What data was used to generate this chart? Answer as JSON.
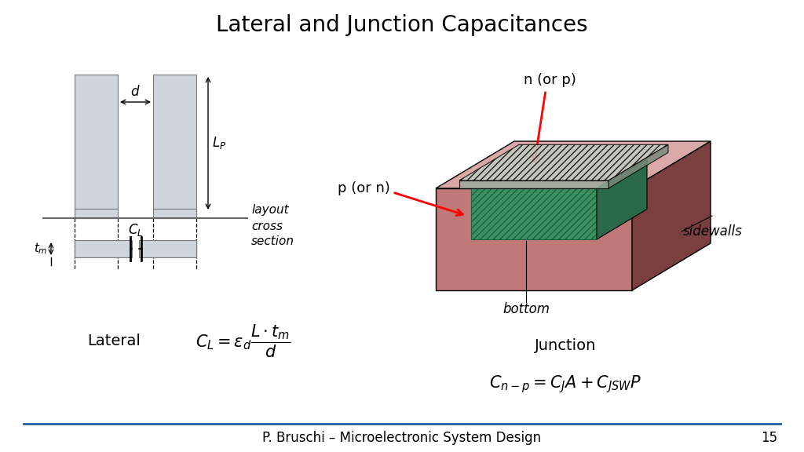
{
  "title": "Lateral and Junction Capacitances",
  "title_fontsize": 20,
  "footer_text": "P. Bruschi – Microelectronic System Design",
  "page_number": "15",
  "background_color": "#ffffff",
  "lateral_label": "Lateral",
  "junction_label": "Junction",
  "lateral_formula": "$C_L = \\varepsilon_d \\dfrac{L \\cdot t_m}{d}$",
  "junction_formula": "$C_{n-p} = C_J A + C_{JSW} P$",
  "footer_line_color": "#2060a0",
  "conductor_color": "#d0d4dc",
  "conductor_edge_color": "#777777",
  "p_sub_front": "#c07878",
  "p_sub_top": "#dba8a8",
  "p_sub_right": "#7a4040",
  "n_front": "#3a9060",
  "n_right": "#2a6a48",
  "n_top": "#4aaa70",
  "gray_front": "#9aaa9a",
  "gray_right": "#7a8a7a",
  "gray_top": "#c0ccc0",
  "hatch_color": "#555555"
}
